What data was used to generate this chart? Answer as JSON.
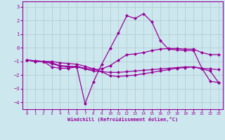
{
  "xlabel": "Windchill (Refroidissement éolien,°C)",
  "x": [
    0,
    1,
    2,
    3,
    4,
    5,
    6,
    7,
    8,
    9,
    10,
    11,
    12,
    13,
    14,
    15,
    16,
    17,
    18,
    19,
    20,
    21,
    22,
    23
  ],
  "line1": [
    -0.9,
    -1.0,
    -1.0,
    -1.4,
    -1.5,
    -1.5,
    -1.4,
    -4.1,
    -2.5,
    -1.2,
    -0.05,
    1.1,
    2.35,
    2.15,
    2.5,
    1.9,
    0.55,
    -0.1,
    -0.15,
    -0.2,
    -0.2,
    -1.5,
    -2.45,
    -2.55
  ],
  "line2": [
    -0.9,
    -1.0,
    -1.0,
    -1.15,
    -1.35,
    -1.4,
    -1.35,
    -1.5,
    -1.6,
    -1.55,
    -1.3,
    -0.9,
    -0.5,
    -0.45,
    -0.35,
    -0.2,
    -0.1,
    -0.05,
    -0.05,
    -0.1,
    -0.1,
    -0.35,
    -0.5,
    -0.5
  ],
  "line3": [
    -0.9,
    -0.95,
    -1.0,
    -1.1,
    -1.3,
    -1.35,
    -1.4,
    -1.55,
    -1.7,
    -1.75,
    -1.8,
    -1.8,
    -1.75,
    -1.7,
    -1.65,
    -1.6,
    -1.55,
    -1.5,
    -1.45,
    -1.4,
    -1.4,
    -1.5,
    -1.55,
    -1.6
  ],
  "line4": [
    -0.9,
    -0.95,
    -1.0,
    -1.0,
    -1.1,
    -1.15,
    -1.2,
    -1.35,
    -1.55,
    -1.75,
    -2.05,
    -2.1,
    -2.05,
    -2.0,
    -1.9,
    -1.8,
    -1.7,
    -1.6,
    -1.5,
    -1.45,
    -1.4,
    -1.55,
    -1.7,
    -2.55
  ],
  "bg_color": "#cce8ee",
  "line_color": "#990099",
  "grid_color": "#b0c8cc",
  "ylim": [
    -4.5,
    3.4
  ],
  "yticks": [
    -4,
    -3,
    -2,
    -1,
    0,
    1,
    2,
    3
  ],
  "xticks": [
    0,
    1,
    2,
    3,
    4,
    5,
    6,
    7,
    8,
    9,
    10,
    11,
    12,
    13,
    14,
    15,
    16,
    17,
    18,
    19,
    20,
    21,
    22,
    23
  ]
}
